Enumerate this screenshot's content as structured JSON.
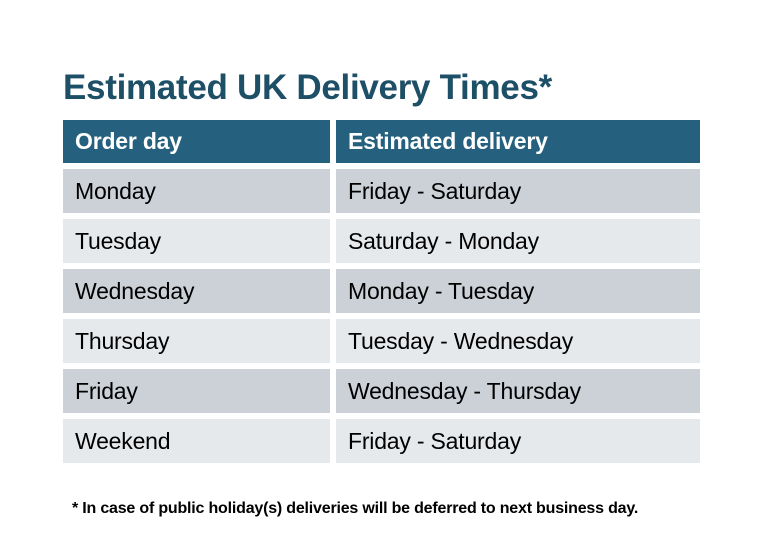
{
  "title": "Estimated UK Delivery Times*",
  "footnote": "* In case of public holiday(s) deliveries will be deferred to next business day.",
  "chart_data": {
    "type": "table",
    "title": "Estimated UK Delivery Times*",
    "columns": [
      "Order day",
      "Estimated delivery"
    ],
    "rows": [
      [
        "Monday",
        "Friday - Saturday"
      ],
      [
        "Tuesday",
        "Saturday - Monday"
      ],
      [
        "Wednesday",
        "Monday - Tuesday"
      ],
      [
        "Thursday",
        "Tuesday - Wednesday"
      ],
      [
        "Friday",
        "Wednesday - Thursday"
      ],
      [
        "Weekend",
        "Friday - Saturday"
      ]
    ]
  },
  "colors": {
    "title": "#1d4f66",
    "header_bg": "#25617f",
    "header_text": "#ffffff",
    "row_odd_bg": "#ccd1d8",
    "row_even_bg": "#e6e9ec",
    "body_text": "#000000",
    "page_bg": "#ffffff"
  }
}
